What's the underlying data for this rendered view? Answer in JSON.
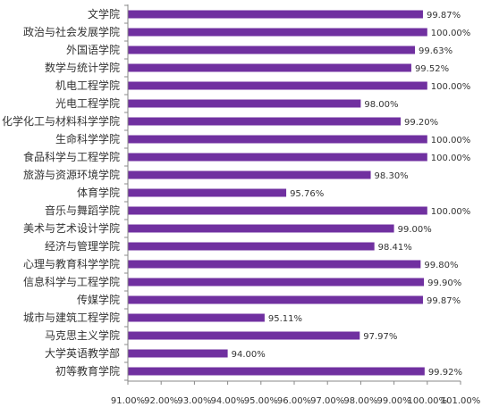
{
  "chart_data": {
    "type": "bar",
    "orientation": "horizontal",
    "categories": [
      "文学院",
      "政治与社会发展学院",
      "外国语学院",
      "数学与统计学院",
      "机电工程学院",
      "光电工程学院",
      "化学化工与材料科学学院",
      "生命科学学院",
      "食品科学与工程学院",
      "旅游与资源环境学院",
      "体育学院",
      "音乐与舞蹈学院",
      "美术与艺术设计学院",
      "经济与管理学院",
      "心理与教育科学学院",
      "信息科学与工程学院",
      "传媒学院",
      "城市与建筑工程学院",
      "马克思主义学院",
      "大学英语教学部",
      "初等教育学院"
    ],
    "values": [
      99.87,
      100.0,
      99.63,
      99.52,
      100.0,
      98.0,
      99.2,
      100.0,
      100.0,
      98.3,
      95.76,
      100.0,
      99.0,
      98.41,
      99.8,
      99.9,
      99.87,
      95.11,
      97.97,
      94.0,
      99.92
    ],
    "value_labels": [
      "99.87%",
      "100.00%",
      "99.63%",
      "99.52%",
      "100.00%",
      "98.00%",
      "99.20%",
      "100.00%",
      "100.00%",
      "98.30%",
      "95.76%",
      "100.00%",
      "99.00%",
      "98.41%",
      "99.80%",
      "99.90%",
      "99.87%",
      "95.11%",
      "97.97%",
      "94.00%",
      "99.92%"
    ],
    "xlim": [
      91,
      101
    ],
    "x_ticks": [
      91,
      92,
      93,
      94,
      95,
      96,
      97,
      98,
      99,
      100,
      101
    ],
    "x_tick_labels": [
      "91.00%",
      "92.00%",
      "93.00%",
      "94.00%",
      "95.00%",
      "96.00%",
      "97.00%",
      "98.00%",
      "99.00%",
      "100.00%",
      "101.00%"
    ],
    "title": "",
    "xlabel": "",
    "ylabel": "",
    "grid": false,
    "legend": "none",
    "bar_color": "#7030A0",
    "axis_color": "#888888"
  }
}
